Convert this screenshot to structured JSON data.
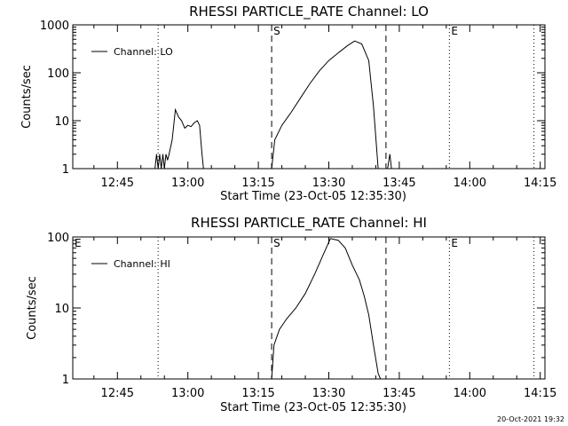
{
  "footer": {
    "timestamp": "20-Oct-2021 19:32"
  },
  "chart_data": [
    {
      "type": "line",
      "title": "RHESSI PARTICLE_RATE Channel: LO",
      "xlabel": "Start Time (23-Oct-05 12:35:30)",
      "ylabel": "Counts/sec",
      "yscale": "log",
      "xlim": [
        "12:35:30",
        "14:16:00"
      ],
      "ylim": [
        1,
        1000
      ],
      "xticks": [
        "12:45",
        "13:00",
        "13:15",
        "13:30",
        "13:45",
        "14:00",
        "14:15"
      ],
      "yticks": [
        "1",
        "10",
        "100",
        "1000"
      ],
      "legend": "upper-left",
      "series": [
        {
          "name": "Channel: LO",
          "x": [
            "12:53:00",
            "12:53:20",
            "12:53:40",
            "12:54:00",
            "12:54:20",
            "12:54:40",
            "12:55:00",
            "12:55:20",
            "12:55:40",
            "12:56:00",
            "12:56:40",
            "12:57:20",
            "12:58:00",
            "12:58:40",
            "12:59:20",
            "13:00:00",
            "13:00:40",
            "13:01:20",
            "13:02:00",
            "13:02:30",
            "13:03:00",
            "13:03:20",
            "13:17:50",
            "13:18:30",
            "13:20:00",
            "13:22:00",
            "13:24:00",
            "13:26:00",
            "13:28:00",
            "13:30:00",
            "13:32:00",
            "13:34:00",
            "13:35:30",
            "13:37:00",
            "13:38:30",
            "13:39:30",
            "13:40:30",
            "13:41:20",
            "13:42:30",
            "13:43:00",
            "13:43:20"
          ],
          "y": [
            1,
            2,
            1,
            2,
            1,
            2,
            1,
            2,
            1.5,
            2,
            4,
            17,
            12,
            10,
            7,
            8,
            7.5,
            9,
            10,
            8,
            2,
            1,
            1,
            4,
            8,
            15,
            30,
            60,
            110,
            180,
            260,
            370,
            460,
            400,
            180,
            20,
            1,
            1,
            1,
            2,
            1
          ]
        }
      ],
      "flags": [
        {
          "label": "S",
          "time": "13:17:50"
        },
        {
          "label": "E",
          "time": "13:55:40"
        }
      ],
      "markers": [
        {
          "style": "dotted",
          "time": "12:53:40"
        },
        {
          "style": "dashed",
          "time": "13:17:50"
        },
        {
          "style": "dashed",
          "time": "13:42:10"
        },
        {
          "style": "dotted",
          "time": "13:55:40"
        },
        {
          "style": "dotted",
          "time": "14:13:40"
        }
      ]
    },
    {
      "type": "line",
      "title": "RHESSI PARTICLE_RATE Channel: HI",
      "xlabel": "Start Time (23-Oct-05 12:35:30)",
      "ylabel": "Counts/sec",
      "yscale": "log",
      "xlim": [
        "12:35:30",
        "14:16:00"
      ],
      "ylim": [
        1,
        100
      ],
      "xticks": [
        "12:45",
        "13:00",
        "13:15",
        "13:30",
        "13:45",
        "14:00",
        "14:15"
      ],
      "yticks": [
        "1",
        "10",
        "100"
      ],
      "legend": "upper-left",
      "series": [
        {
          "name": "Channel: HI",
          "x": [
            "13:17:50",
            "13:18:20",
            "13:19:30",
            "13:21:00",
            "13:23:00",
            "13:25:00",
            "13:27:00",
            "13:29:00",
            "13:30:20",
            "13:32:00",
            "13:33:30",
            "13:35:00",
            "13:36:30",
            "13:37:30",
            "13:38:30",
            "13:39:30",
            "13:40:30",
            "13:41:00"
          ],
          "y": [
            1,
            3,
            5,
            7,
            10,
            16,
            30,
            60,
            95,
            90,
            70,
            40,
            25,
            15,
            8,
            3,
            1.2,
            1
          ]
        }
      ],
      "flags": [
        {
          "label": "E",
          "time": "12:35:30"
        },
        {
          "label": "S",
          "time": "13:17:50"
        },
        {
          "label": "E",
          "time": "13:55:40"
        }
      ],
      "markers": [
        {
          "style": "dotted",
          "time": "12:53:40"
        },
        {
          "style": "dashed",
          "time": "13:17:50"
        },
        {
          "style": "dashed",
          "time": "13:42:10"
        },
        {
          "style": "dotted",
          "time": "13:55:40"
        },
        {
          "style": "dotted",
          "time": "14:13:40"
        }
      ]
    }
  ]
}
